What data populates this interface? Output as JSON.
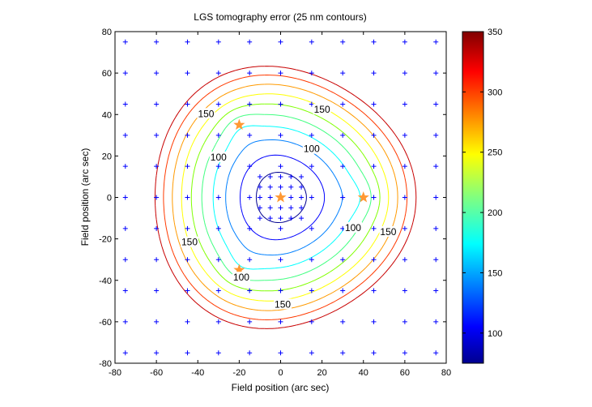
{
  "chart_data": {
    "type": "contour",
    "title": "LGS tomography error (25 nm contours)",
    "xlabel": "Field position (arc sec)",
    "ylabel": "Field position (arc sec)",
    "xlim": [
      -80,
      80
    ],
    "ylim": [
      -80,
      80
    ],
    "xticks": [
      "-80",
      "-60",
      "-40",
      "-20",
      "0",
      "20",
      "40",
      "60",
      "80"
    ],
    "yticks": [
      "-80",
      "-60",
      "-40",
      "-20",
      "0",
      "20",
      "40",
      "60",
      "80"
    ],
    "grid": false,
    "colorbar": {
      "range": [
        75,
        350
      ],
      "ticks": [
        "100",
        "150",
        "200",
        "250",
        "300",
        "350"
      ],
      "colormap": "jet"
    },
    "contour_levels": [
      100,
      125,
      150,
      175,
      200,
      225,
      250,
      275,
      300,
      325
    ],
    "contour_labels": [
      {
        "text": "150",
        "x": 20,
        "y": 42
      },
      {
        "text": "150",
        "x": -36,
        "y": 40
      },
      {
        "text": "100",
        "x": 15,
        "y": 23
      },
      {
        "text": "100",
        "x": -30,
        "y": 19
      },
      {
        "text": "150",
        "x": -44,
        "y": -22
      },
      {
        "text": "100",
        "x": 35,
        "y": -15
      },
      {
        "text": "150",
        "x": 52,
        "y": -17
      },
      {
        "text": "100",
        "x": -19,
        "y": -39
      },
      {
        "text": "150",
        "x": 1,
        "y": -52
      }
    ],
    "lgs_stars": [
      {
        "x": -20,
        "y": 35
      },
      {
        "x": 0,
        "y": 0
      },
      {
        "x": 40,
        "y": 0
      },
      {
        "x": -20,
        "y": -35
      }
    ],
    "grid_points_step": 15,
    "grid_points_range": [
      -75,
      75
    ],
    "dense_points_step": 5,
    "dense_points_range": [
      -10,
      10
    ],
    "colors": {
      "grid_marker": "#0000ff",
      "star": "#ff9933",
      "level_100": "#00008f",
      "level_125": "#0000ff",
      "level_150": "#0080ff",
      "level_175": "#00ffff",
      "level_200": "#40ff80",
      "level_225": "#80ff00",
      "level_250": "#ffff00",
      "level_275": "#ff9a00",
      "level_300": "#ff3a00",
      "level_325": "#c80000"
    }
  }
}
